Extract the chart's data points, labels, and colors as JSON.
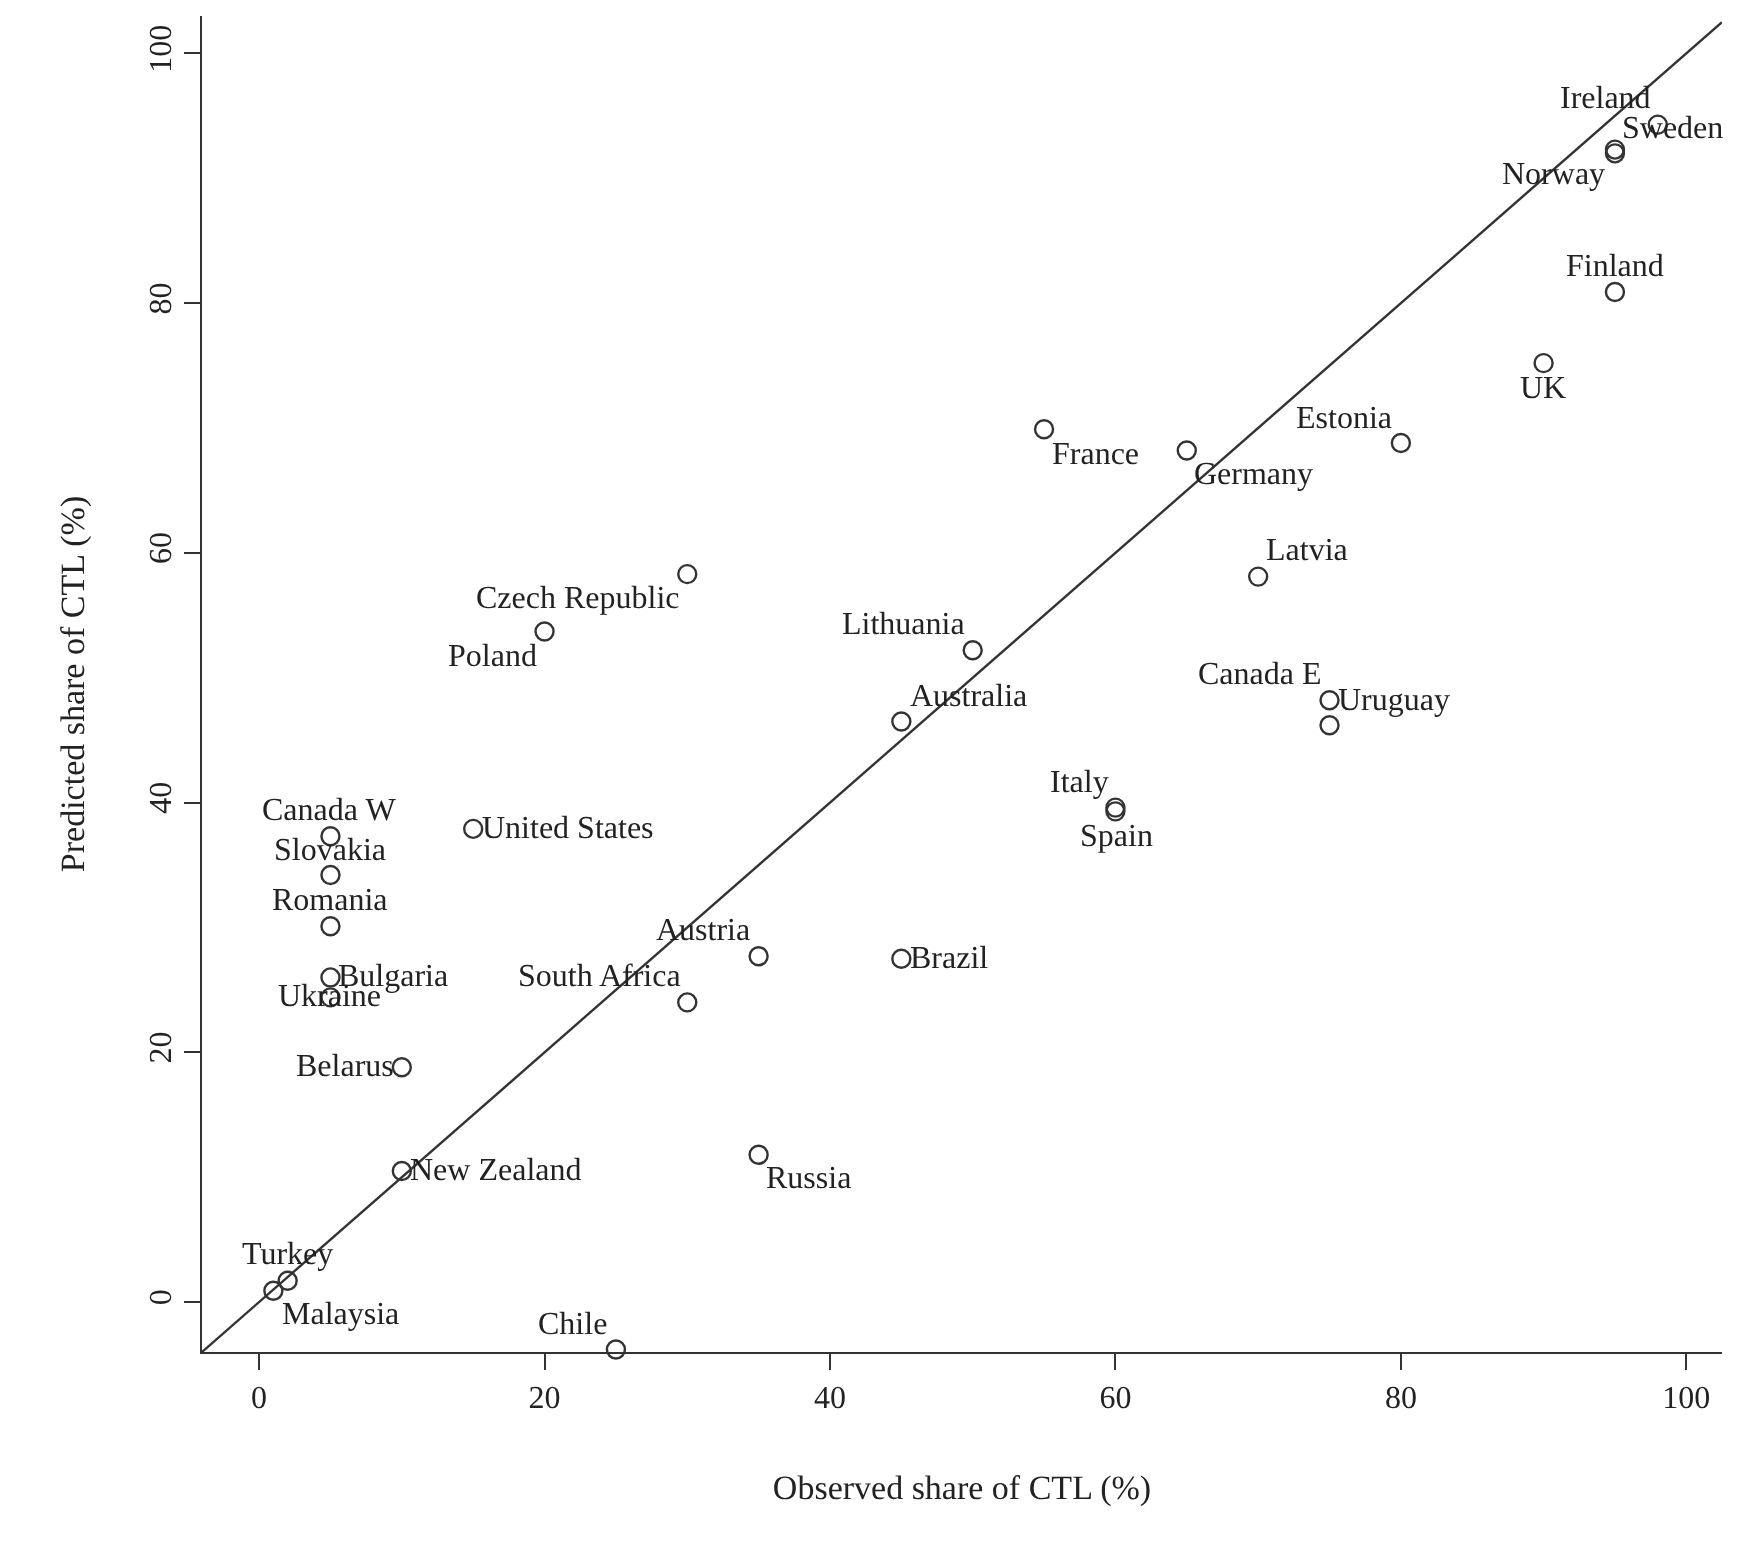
{
  "chart_data": {
    "type": "scatter",
    "xlabel": "Observed share of CTL (%)",
    "ylabel": "Predicted share of CTL (%)",
    "xlim": [
      -4,
      102.5
    ],
    "ylim": [
      -4,
      103
    ],
    "xticks": [
      0,
      20,
      40,
      60,
      80,
      100
    ],
    "yticks": [
      0,
      20,
      40,
      60,
      80,
      100
    ],
    "marker": "circle",
    "series": [
      {
        "color": "#333333",
        "x": [
          98,
          95,
          95,
          95,
          90,
          80,
          65,
          55,
          70,
          50,
          45,
          75,
          75,
          60,
          60,
          45,
          35,
          30,
          30,
          20,
          15,
          5,
          5,
          5,
          5,
          5,
          10,
          10,
          35,
          2,
          1,
          25
        ],
        "values": [
          94.3,
          92,
          92.3,
          80.9,
          75.2,
          68.8,
          68.2,
          69.9,
          58.1,
          52.2,
          46.5,
          48.2,
          46.2,
          39.6,
          39.3,
          27.5,
          27.7,
          24.0,
          58.3,
          53.7,
          37.9,
          37.3,
          34.2,
          30.1,
          26.0,
          24.4,
          18.8,
          10.5,
          11.8,
          1.7,
          0.9,
          -3.8
        ]
      },
      {
        "type": "line",
        "color": "#333333",
        "marker": "none",
        "line_style": "solid",
        "x": [
          -4,
          102.5
        ],
        "values": [
          -4,
          102.5
        ]
      }
    ],
    "annotations": [
      {
        "text": "Ireland",
        "x": 98,
        "y": 94.3
      },
      {
        "text": "Sweden",
        "x": 95,
        "y": 92
      },
      {
        "text": "Norway",
        "x": 95,
        "y": 92.3
      },
      {
        "text": "Finland",
        "x": 95,
        "y": 80.9
      },
      {
        "text": "UK",
        "x": 90,
        "y": 75.2
      },
      {
        "text": "Estonia",
        "x": 80,
        "y": 68.8
      },
      {
        "text": "Germany",
        "x": 65,
        "y": 68.2
      },
      {
        "text": "France",
        "x": 55,
        "y": 69.9
      },
      {
        "text": "Latvia",
        "x": 70,
        "y": 58.1
      },
      {
        "text": "Lithuania",
        "x": 50,
        "y": 52.2
      },
      {
        "text": "Australia",
        "x": 45,
        "y": 46.5
      },
      {
        "text": "Canada E",
        "x": 75,
        "y": 48.2
      },
      {
        "text": "Uruguay",
        "x": 75,
        "y": 46.2
      },
      {
        "text": "Italy",
        "x": 60,
        "y": 39.6
      },
      {
        "text": "Spain",
        "x": 60,
        "y": 39.3
      },
      {
        "text": "Brazil",
        "x": 45,
        "y": 27.5
      },
      {
        "text": "Austria",
        "x": 35,
        "y": 27.7
      },
      {
        "text": "South Africa",
        "x": 30,
        "y": 24.0
      },
      {
        "text": "Czech Republic",
        "x": 30,
        "y": 58.3
      },
      {
        "text": "Poland",
        "x": 20,
        "y": 53.7
      },
      {
        "text": "United States",
        "x": 15,
        "y": 37.9
      },
      {
        "text": "Canada W",
        "x": 5,
        "y": 37.3
      },
      {
        "text": "Slovakia",
        "x": 5,
        "y": 34.2
      },
      {
        "text": "Romania",
        "x": 5,
        "y": 30.1
      },
      {
        "text": "Bulgaria",
        "x": 5,
        "y": 26.0
      },
      {
        "text": "Ukraine",
        "x": 5,
        "y": 24.4
      },
      {
        "text": "Belarus",
        "x": 10,
        "y": 18.8
      },
      {
        "text": "New Zealand",
        "x": 10,
        "y": 10.5
      },
      {
        "text": "Russia",
        "x": 35,
        "y": 11.8
      },
      {
        "text": "Turkey",
        "x": 2,
        "y": 1.7
      },
      {
        "text": "Malaysia",
        "x": 1,
        "y": 0.9
      },
      {
        "text": "Chile",
        "x": 25,
        "y": -3.8
      }
    ]
  }
}
